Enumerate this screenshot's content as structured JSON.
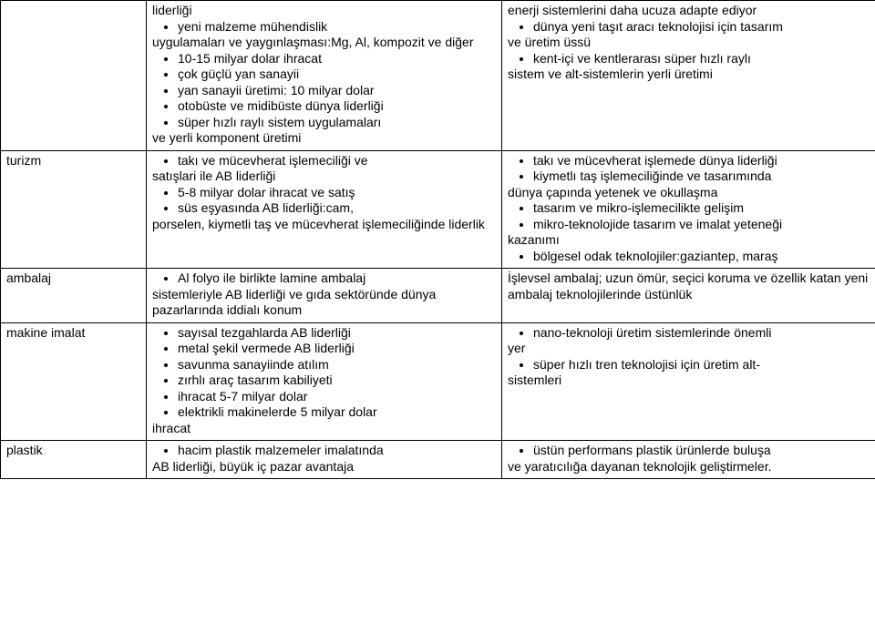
{
  "rows": [
    {
      "label": "",
      "col2": [
        {
          "type": "text",
          "text": "liderliği"
        },
        {
          "type": "bullet",
          "text": "yeni malzeme mühendislik"
        },
        {
          "type": "text",
          "text": "uygulamaları ve yaygınlaşması:Mg, Al, kompozit ve diğer"
        },
        {
          "type": "bullet",
          "text": "10-15 milyar dolar ihracat"
        },
        {
          "type": "bullet",
          "text": "çok güçlü yan sanayii"
        },
        {
          "type": "bullet",
          "text": "yan sanayii üretimi: 10 milyar dolar"
        },
        {
          "type": "bullet",
          "text": "otobüste ve midibüste dünya liderliği"
        },
        {
          "type": "bullet",
          "text": "süper hızlı raylı sistem uygulamaları"
        },
        {
          "type": "text",
          "text": "ve yerli komponent üretimi"
        }
      ],
      "col3": [
        {
          "type": "text",
          "text": "enerji sistemlerini daha ucuza adapte ediyor"
        },
        {
          "type": "bullet",
          "text": "dünya yeni taşıt aracı teknolojisi için tasarım"
        },
        {
          "type": "text",
          "text": "ve üretim üssü"
        },
        {
          "type": "bullet",
          "text": "kent-içi ve kentlerarası süper hızlı raylı"
        },
        {
          "type": "text",
          "text": "sistem ve alt-sistemlerin yerli üretimi"
        }
      ]
    },
    {
      "label": "turizm",
      "col2": [
        {
          "type": "bullet",
          "text": "takı ve mücevherat işlemeciliği ve"
        },
        {
          "type": "text",
          "text": "satışlari ile AB liderliği"
        },
        {
          "type": "bullet",
          "text": "5-8 milyar dolar ihracat ve satış"
        },
        {
          "type": "bullet",
          "text": "süs eşyasında AB liderliği:cam,"
        },
        {
          "type": "text",
          "text": "porselen, kiymetli taş ve mücevherat işlemeciliğinde liderlik"
        }
      ],
      "col3": [
        {
          "type": "bullet",
          "text": "takı ve mücevherat işlemede dünya liderliği"
        },
        {
          "type": "bullet",
          "text": "kiymetlı taş işlemeciliğinde ve tasarımında"
        },
        {
          "type": "text",
          "text": "dünya çapında yetenek ve okullaşma"
        },
        {
          "type": "bullet",
          "text": "tasarım ve mikro-işlemecilikte gelişim"
        },
        {
          "type": "bullet",
          "text": "mikro-teknolojide tasarım ve imalat yeteneği"
        },
        {
          "type": "text",
          "text": "kazanımı"
        },
        {
          "type": "bullet",
          "text": "bölgesel odak teknolojiler:gaziantep, maraş"
        }
      ]
    },
    {
      "label": "ambalaj",
      "col2": [
        {
          "type": "bullet",
          "text": "Al folyo ile birlikte lamine ambalaj"
        },
        {
          "type": "text",
          "text": "sistemleriyle AB liderliği ve gıda sektöründe dünya pazarlarında iddialı konum"
        }
      ],
      "col3": [
        {
          "type": "text",
          "text": "İşlevsel ambalaj; uzun ömür, seçici koruma ve özellik katan yeni ambalaj teknolojilerinde üstünlük"
        }
      ]
    },
    {
      "label": "makine imalat",
      "col2": [
        {
          "type": "bullet",
          "text": "sayısal tezgahlarda AB liderliği"
        },
        {
          "type": "bullet",
          "text": "metal şekil vermede AB liderliği"
        },
        {
          "type": "bullet",
          "text": "savunma sanayiinde atılım"
        },
        {
          "type": "bullet",
          "text": "zırhlı araç tasarım kabiliyeti"
        },
        {
          "type": "bullet",
          "text": "ihracat 5-7 milyar dolar"
        },
        {
          "type": "bullet",
          "text": "elektrikli makinelerde 5 milyar dolar"
        },
        {
          "type": "text",
          "text": "ihracat"
        }
      ],
      "col3": [
        {
          "type": "bullet",
          "text": "nano-teknoloji üretim sistemlerinde önemli"
        },
        {
          "type": "text",
          "text": "yer"
        },
        {
          "type": "bullet",
          "text": "süper hızlı tren teknolojisi için üretim alt-"
        },
        {
          "type": "text",
          "text": "sistemleri"
        }
      ]
    },
    {
      "label": "plastik",
      "col2": [
        {
          "type": "bullet",
          "text": "hacim plastik malzemeler imalatında"
        },
        {
          "type": "text",
          "text": "AB liderliği, büyük iç pazar avantaja"
        }
      ],
      "col3": [
        {
          "type": "bullet",
          "text": "üstün performans plastik ürünlerde buluşa"
        },
        {
          "type": "text",
          "text": "ve yaratıcılığa dayanan teknolojik geliştirmeler."
        }
      ]
    }
  ]
}
